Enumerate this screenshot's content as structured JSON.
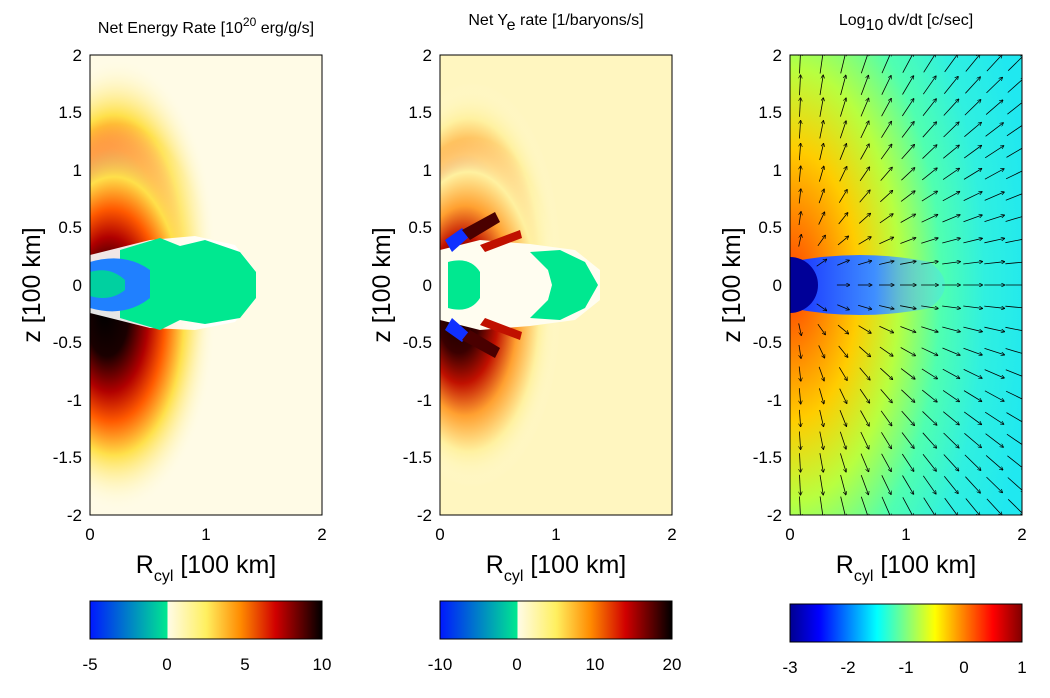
{
  "chart_data": [
    {
      "type": "heatmap",
      "title": {
        "main": "Net Energy Rate [10",
        "sup": "20",
        "rest": " erg/g/s]"
      },
      "xlabel": {
        "main": "R",
        "sub": "cyl",
        "rest": " [100 km]"
      },
      "ylabel": "z [100 km]",
      "xlim": [
        0,
        2
      ],
      "ylim": [
        -2,
        2
      ],
      "xticks": [
        "0",
        "1",
        "2"
      ],
      "yticks": [
        "2",
        "1.5",
        "1",
        "0.5",
        "0",
        "-0.5",
        "-1",
        "-1.5",
        "-2"
      ],
      "colorbar": {
        "range": [
          -5,
          10
        ],
        "zero_split": 0.333,
        "ticks": [
          "-5",
          "0",
          "5",
          "10"
        ]
      }
    },
    {
      "type": "heatmap",
      "title": {
        "main": "Net Y",
        "sub": "e",
        "rest": " rate [1/baryons/s]"
      },
      "xlabel": {
        "main": "R",
        "sub": "cyl",
        "rest": " [100 km]"
      },
      "ylabel": "z [100 km]",
      "xlim": [
        0,
        2
      ],
      "ylim": [
        -2,
        2
      ],
      "xticks": [
        "0",
        "1",
        "2"
      ],
      "yticks": [
        "2",
        "1.5",
        "1",
        "0.5",
        "0",
        "-0.5",
        "-1",
        "-1.5",
        "-2"
      ],
      "colorbar": {
        "range": [
          -10,
          20
        ],
        "zero_split": 0.333,
        "ticks": [
          "-10",
          "0",
          "10",
          "20"
        ]
      }
    },
    {
      "type": "heatmap",
      "title": {
        "main": "Log",
        "sub": "10",
        "rest": " dv/dt [c/sec]"
      },
      "xlabel": {
        "main": "R",
        "sub": "cyl",
        "rest": " [100 km]"
      },
      "ylabel": "z [100 km]",
      "xlim": [
        0,
        2
      ],
      "ylim": [
        -2,
        2
      ],
      "xticks": [
        "0",
        "1",
        "2"
      ],
      "yticks": [
        "2",
        "1.5",
        "1",
        "0.5",
        "0",
        "-0.5",
        "-1",
        "-1.5",
        "-2"
      ],
      "colorbar": {
        "range": [
          -3,
          1
        ],
        "ticks": [
          "-3",
          "-2",
          "-1",
          "0",
          "1"
        ]
      },
      "overlay": "velocity-arrows"
    }
  ]
}
